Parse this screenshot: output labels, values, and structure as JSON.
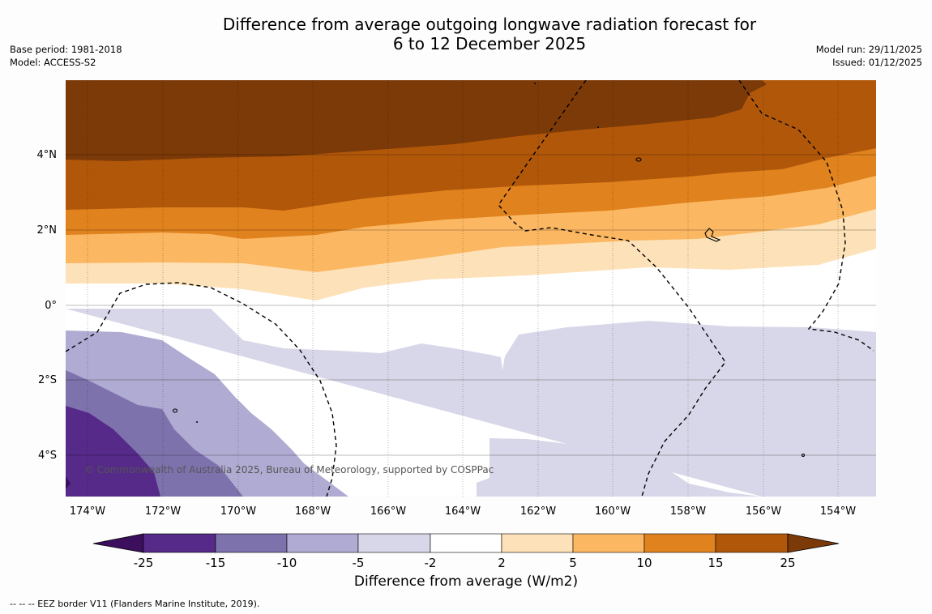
{
  "title": {
    "line1": "Difference from average outgoing longwave radiation forecast for",
    "line2": "6 to 12 December 2025"
  },
  "meta_left": {
    "base_period": "Base period: 1981-2018",
    "model": "Model: ACCESS-S2"
  },
  "meta_right": {
    "model_run": "Model run: 29/11/2025",
    "issued": "Issued: 01/12/2025"
  },
  "map": {
    "lon_ticks": [
      "174°W",
      "172°W",
      "170°W",
      "168°W",
      "166°W",
      "164°W",
      "162°W",
      "160°W",
      "158°W",
      "156°W",
      "154°W"
    ],
    "lat_ticks": [
      "4°N",
      "2°N",
      "0°",
      "2°S",
      "4°S"
    ],
    "copyright": "© Commonwealth of Australia 2025, Bureau of Meteorology, supported by COSPPac"
  },
  "colorbar": {
    "title": "Difference from average (W/m2)",
    "tick_labels": [
      "-25",
      "-15",
      "-10",
      "-5",
      "-2",
      "2",
      "5",
      "10",
      "15",
      "25"
    ],
    "colors": [
      "#3b0f5e",
      "#552a88",
      "#7e72ad",
      "#b0abd2",
      "#d7d7e9",
      "#ffffff",
      "#fde1b8",
      "#fbb762",
      "#e0821d",
      "#b1570a",
      "#7c3a08"
    ]
  },
  "footer": "--  --  -- EEZ border V11 (Flanders Marine Institute, 2019)."
}
